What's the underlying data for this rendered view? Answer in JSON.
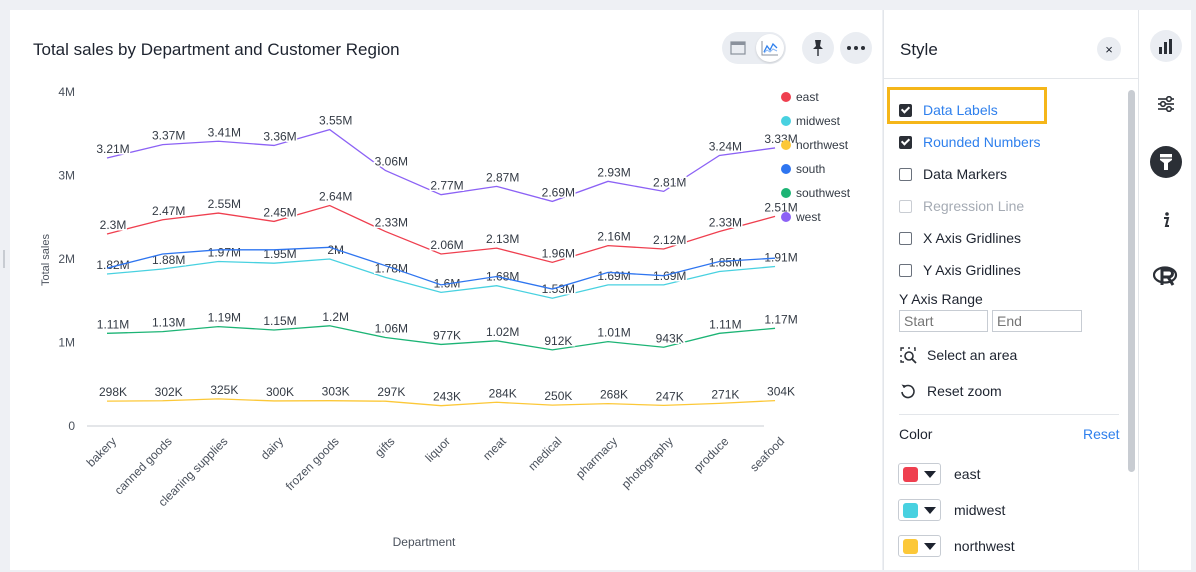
{
  "chart_card": {
    "title": "Total sales by Department and Customer Region"
  },
  "toolbar": {
    "table_view_icon": "table-icon",
    "chart_view_icon": "line-chart-icon",
    "pin_icon": "pin-icon",
    "more_icon": "more-icon"
  },
  "chart_data": {
    "type": "line",
    "title": "Total sales by Department and Customer Region",
    "xlabel": "Department",
    "ylabel": "Total sales",
    "ylim": [
      0,
      4000000
    ],
    "y_ticks": [
      "0",
      "1M",
      "2M",
      "3M",
      "4M"
    ],
    "categories": [
      "bakery",
      "canned goods",
      "cleaning supplies",
      "dairy",
      "frozen goods",
      "gifts",
      "liquor",
      "meat",
      "medical",
      "pharmacy",
      "photography",
      "produce",
      "seafood"
    ],
    "legend_position": "top-right",
    "grid": false,
    "series": [
      {
        "name": "east",
        "color": "#ef3f4f",
        "values": [
          2300000,
          2470000,
          2550000,
          2450000,
          2640000,
          2330000,
          2060000,
          2130000,
          1960000,
          2160000,
          2120000,
          2330000,
          2510000
        ],
        "labels": [
          "2.3M",
          "2.47M",
          "2.55M",
          "2.45M",
          "2.64M",
          "2.33M",
          "2.06M",
          "2.13M",
          "1.96M",
          "2.16M",
          "2.12M",
          "2.33M",
          "2.51M"
        ]
      },
      {
        "name": "midwest",
        "color": "#48d1e0",
        "values": [
          1820000,
          1880000,
          1970000,
          1950000,
          2000000,
          1780000,
          1600000,
          1680000,
          1530000,
          1690000,
          1690000,
          1850000,
          1910000
        ],
        "labels": [
          "1.82M",
          "1.88M",
          "1.97M",
          "1.95M",
          "2M",
          "1.78M",
          "1.6M",
          "1.68M",
          "1.53M",
          "1.69M",
          "1.69M",
          "1.85M",
          "1.91M"
        ]
      },
      {
        "name": "northwest",
        "color": "#fcc838",
        "values": [
          298000,
          302000,
          325000,
          300000,
          303000,
          297000,
          243000,
          284000,
          250000,
          268000,
          247000,
          271000,
          304000
        ],
        "labels": [
          "298K",
          "302K",
          "325K",
          "300K",
          "303K",
          "297K",
          "243K",
          "284K",
          "250K",
          "268K",
          "247K",
          "271K",
          "304K"
        ]
      },
      {
        "name": "south",
        "color": "#2e75f0",
        "values": [
          1890000,
          2060000,
          2110000,
          2110000,
          2140000,
          1920000,
          1690000,
          1790000,
          1640000,
          1840000,
          1800000,
          1970000,
          2010000
        ],
        "labels": []
      },
      {
        "name": "southwest",
        "color": "#1cb475",
        "values": [
          1110000,
          1130000,
          1190000,
          1150000,
          1200000,
          1060000,
          977000,
          1020000,
          912000,
          1010000,
          943000,
          1110000,
          1170000
        ],
        "labels": [
          "1.11M",
          "1.13M",
          "1.19M",
          "1.15M",
          "1.2M",
          "1.06M",
          "977K",
          "1.02M",
          "912K",
          "1.01M",
          "943K",
          "1.11M",
          "1.17M"
        ]
      },
      {
        "name": "west",
        "color": "#8c62f5",
        "values": [
          3210000,
          3370000,
          3410000,
          3360000,
          3550000,
          3060000,
          2770000,
          2870000,
          2690000,
          2930000,
          2810000,
          3240000,
          3330000
        ],
        "labels": [
          "3.21M",
          "3.37M",
          "3.41M",
          "3.36M",
          "3.55M",
          "3.06M",
          "2.77M",
          "2.87M",
          "2.69M",
          "2.93M",
          "2.81M",
          "3.24M",
          "3.33M"
        ]
      }
    ]
  },
  "style_panel": {
    "title": "Style",
    "close_label": "×",
    "options": [
      {
        "label": "Data Labels",
        "checked": true,
        "state": "active"
      },
      {
        "label": "Rounded Numbers",
        "checked": true,
        "state": "active"
      },
      {
        "label": "Data Markers",
        "checked": false,
        "state": "normal"
      },
      {
        "label": "Regression Line",
        "checked": false,
        "state": "disabled"
      },
      {
        "label": "X Axis Gridlines",
        "checked": false,
        "state": "normal"
      },
      {
        "label": "Y Axis Gridlines",
        "checked": false,
        "state": "normal"
      }
    ],
    "y_axis_range": {
      "label": "Y Axis Range",
      "start_placeholder": "Start",
      "end_placeholder": "End"
    },
    "select_area_label": "Select an area",
    "reset_zoom_label": "Reset zoom",
    "color_section": {
      "label": "Color",
      "reset_label": "Reset",
      "items": [
        {
          "name": "east",
          "color": "#ef3f4f"
        },
        {
          "name": "midwest",
          "color": "#48d1e0"
        },
        {
          "name": "northwest",
          "color": "#fcc838"
        }
      ]
    },
    "highlight_color": "#f5b619"
  },
  "right_rail": {
    "buttons": [
      "bar-chart-icon",
      "sliders-icon",
      "paint-brush-icon",
      "info-icon",
      "r-script-icon"
    ]
  }
}
